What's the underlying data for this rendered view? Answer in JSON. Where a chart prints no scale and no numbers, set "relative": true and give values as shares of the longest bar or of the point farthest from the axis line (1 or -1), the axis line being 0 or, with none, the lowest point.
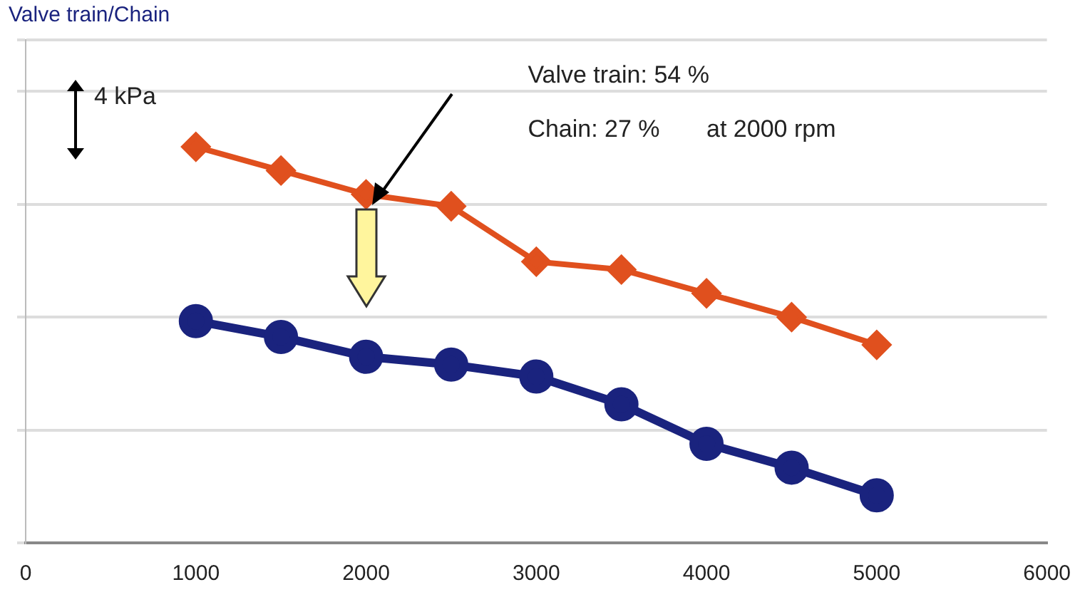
{
  "chart_data": {
    "type": "line",
    "title": "Valve train/Chain",
    "relative": true,
    "x": [
      1000,
      1500,
      2000,
      2500,
      3000,
      3500,
      4000,
      4500,
      5000
    ],
    "xlim": [
      0,
      6000
    ],
    "xticks": [
      0,
      1000,
      2000,
      3000,
      4000,
      5000,
      6000
    ],
    "series": [
      {
        "color": "#e0501e",
        "marker": "diamond",
        "values": [
          1,
          0.94,
          0.88,
          0.85,
          0.71,
          0.69,
          0.63,
          0.57,
          0.5
        ]
      },
      {
        "color": "#1a237e",
        "marker": "circle",
        "values": [
          0.56,
          0.52,
          0.47,
          0.45,
          0.42,
          0.35,
          0.25,
          0.19,
          0.12
        ]
      }
    ],
    "grid": "y",
    "legend": false,
    "annotations": [
      "4 kPa",
      "Valve train: 54 %",
      "Chain: 27 %",
      "at 2000 rpm"
    ]
  }
}
